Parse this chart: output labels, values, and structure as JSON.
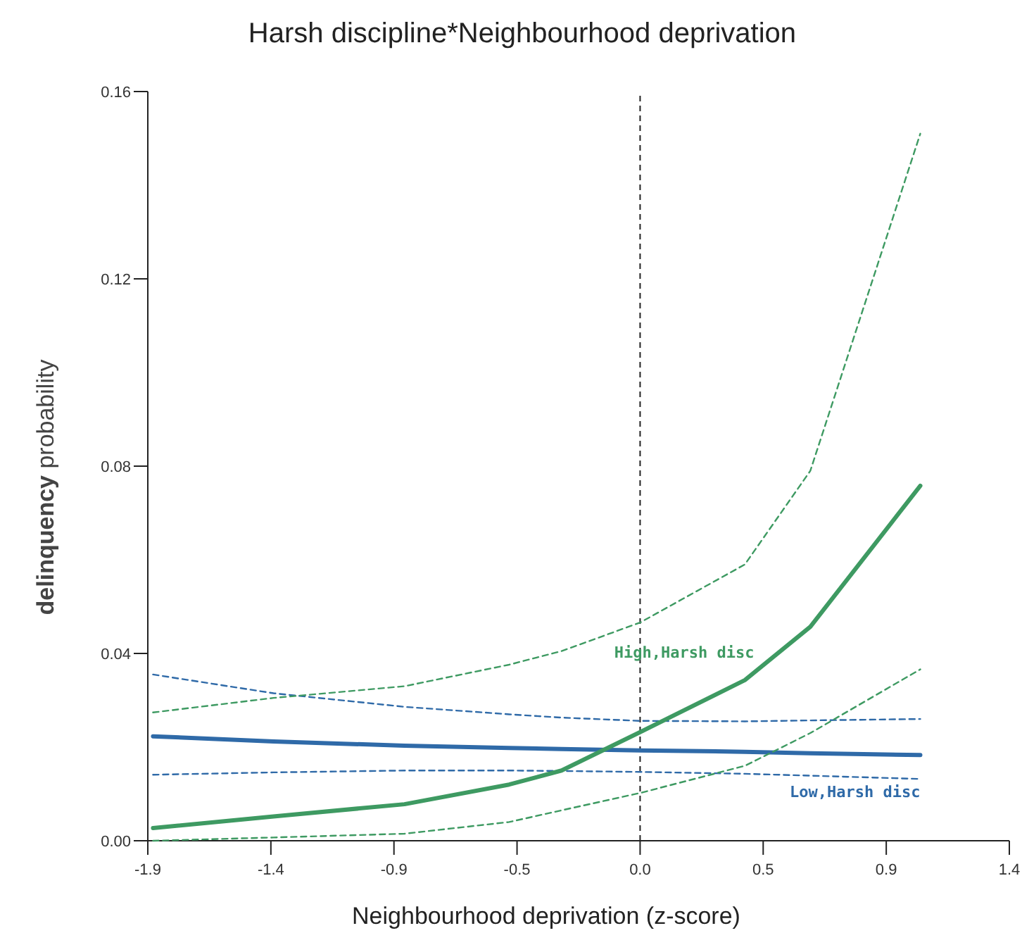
{
  "chart_data": {
    "type": "line",
    "title": "Harsh discipline*Neighbourhood deprivation",
    "xlabel": "Neighbourhood deprivation (z-score)",
    "ylabel": "delinquency probability",
    "x": [
      -1.86,
      -1.4,
      -0.9,
      -0.5,
      -0.3,
      0,
      0.4,
      0.65,
      1.07
    ],
    "series": [
      {
        "name": "Low,Harsh disc",
        "color": "#2f6aa8",
        "values": [
          0.0223,
          0.0212,
          0.0203,
          0.0198,
          0.0196,
          0.0193,
          0.019,
          0.0187,
          0.0183
        ]
      },
      {
        "color": "#2f6aa8",
        "line_style": "dashed",
        "values": [
          0.0355,
          0.0315,
          0.0286,
          0.027,
          0.0263,
          0.0256,
          0.0255,
          0.0257,
          0.026
        ]
      },
      {
        "color": "#2f6aa8",
        "line_style": "dashed",
        "values": [
          0.0141,
          0.0146,
          0.015,
          0.015,
          0.0149,
          0.0147,
          0.0143,
          0.0139,
          0.0132
        ]
      },
      {
        "name": "High,Harsh disc",
        "color": "#3e9a62",
        "values": [
          0.0027,
          0.0052,
          0.0078,
          0.012,
          0.015,
          0.0232,
          0.0343,
          0.0457,
          0.0758
        ]
      },
      {
        "color": "#3e9a62",
        "line_style": "dashed",
        "values": [
          0.0274,
          0.0305,
          0.033,
          0.0376,
          0.0405,
          0.0466,
          0.059,
          0.079,
          0.151
        ]
      },
      {
        "color": "#3e9a62",
        "line_style": "dashed",
        "values": [
          0.0,
          0.0007,
          0.0015,
          0.004,
          0.0065,
          0.0102,
          0.016,
          0.023,
          0.0366
        ]
      }
    ],
    "xlim": [
      -1.88,
      1.41
    ],
    "xticks": [
      {
        "value": -1.88,
        "label": "-1.9"
      },
      {
        "value": -1.41,
        "label": "-1.4"
      },
      {
        "value": -0.94,
        "label": "-0.9"
      },
      {
        "value": -0.47,
        "label": "-0.5"
      },
      {
        "value": 0,
        "label": "0.0"
      },
      {
        "value": 0.47,
        "label": "0.5"
      },
      {
        "value": 0.94,
        "label": "0.9"
      },
      {
        "value": 1.41,
        "label": "1.4"
      }
    ],
    "ylim": [
      0,
      0.16
    ],
    "yticks": [
      {
        "value": 0,
        "label": "0.00"
      },
      {
        "value": 0.04,
        "label": "0.04"
      },
      {
        "value": 0.08,
        "label": "0.08"
      },
      {
        "value": 0.12,
        "label": "0.12"
      },
      {
        "value": 0.16,
        "label": "0.16"
      }
    ],
    "ref_lines": [
      {
        "axis": "x",
        "value": 0,
        "color": "#222222",
        "line_style": "dashed"
      }
    ],
    "grid": false,
    "legend": false,
    "marker": "none"
  }
}
